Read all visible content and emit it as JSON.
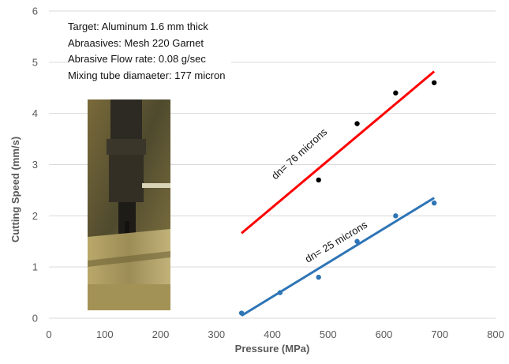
{
  "chart_data": {
    "type": "scatter",
    "xlabel": "Pressure (MPa)",
    "ylabel": "Cutting Speed (mm/s)",
    "xlim": [
      0,
      800
    ],
    "ylim": [
      0,
      6
    ],
    "x_ticks": [
      0,
      100,
      200,
      300,
      400,
      500,
      600,
      700,
      800
    ],
    "y_ticks": [
      0,
      1,
      2,
      3,
      4,
      5,
      6
    ],
    "grid": "horizontal",
    "annotation_lines": [
      "Target: Aluminum 1.6 mm thick",
      "Abraasives: Mesh 220 Garnet",
      "Abrasive Flow rate: 0.08 g/sec",
      "Mixing tube diamaeter: 177 micron"
    ],
    "series": [
      {
        "label": "dn= 76 microns",
        "color": "#000000",
        "trend_color": "#ff0000",
        "points": [
          {
            "x": 483,
            "y": 2.7
          },
          {
            "x": 552,
            "y": 3.8
          },
          {
            "x": 621,
            "y": 4.4
          },
          {
            "x": 690,
            "y": 4.6
          }
        ],
        "trend": [
          [
            345,
            1.66
          ],
          [
            690,
            4.82
          ]
        ]
      },
      {
        "label": "dn= 25 microns",
        "color": "#2e75b6",
        "trend_color": "#2e75b6",
        "points": [
          {
            "x": 345,
            "y": 0.1
          },
          {
            "x": 414,
            "y": 0.5
          },
          {
            "x": 483,
            "y": 0.8
          },
          {
            "x": 552,
            "y": 1.5
          },
          {
            "x": 621,
            "y": 2.0
          },
          {
            "x": 690,
            "y": 2.25
          }
        ],
        "trend": [
          [
            345,
            0.05
          ],
          [
            690,
            2.35
          ]
        ]
      }
    ]
  }
}
